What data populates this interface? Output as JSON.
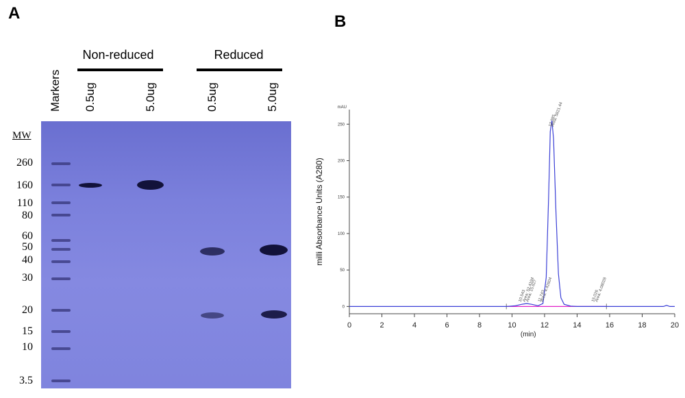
{
  "panel_a": {
    "letter": "A",
    "groups": [
      {
        "label": "Non-reduced"
      },
      {
        "label": "Reduced"
      }
    ],
    "lanes": [
      {
        "label": "Markers"
      },
      {
        "label": "0.5ug"
      },
      {
        "label": "5.0ug"
      },
      {
        "label": "0.5ug"
      },
      {
        "label": "5.0ug"
      }
    ],
    "mw_title": "MW",
    "mw_markers": [
      "260",
      "160",
      "110",
      "80",
      "60",
      "50",
      "40",
      "30",
      "20",
      "15",
      "10",
      "3.5"
    ]
  },
  "panel_b": {
    "letter": "B"
  },
  "chart_data": {
    "type": "line",
    "title": "",
    "xlabel": "(min)",
    "ylabel": "milli Absorbance Units (A280)",
    "yunit": "mAU",
    "xlim": [
      0,
      20
    ],
    "ylim": [
      -10,
      270
    ],
    "xticks": [
      "0",
      "2",
      "4",
      "6",
      "8",
      "10",
      "12",
      "14",
      "16",
      "18",
      "20"
    ],
    "yticks": [
      "0",
      "50",
      "100",
      "150",
      "200",
      "250"
    ],
    "series": [
      {
        "color": "#3a3fd6",
        "x": [
          0,
          9.7,
          10.2,
          10.6,
          10.9,
          11.2,
          11.6,
          11.9,
          12.1,
          12.25,
          12.35,
          12.45,
          12.55,
          12.7,
          12.85,
          13.0,
          13.2,
          13.6,
          14.0,
          15.0,
          18.0,
          19.3,
          19.5,
          19.7,
          20.0
        ],
        "y": [
          0,
          0,
          1,
          3,
          4,
          3,
          1,
          4,
          40,
          150,
          240,
          255,
          230,
          130,
          45,
          12,
          3,
          0.5,
          0,
          0,
          0,
          0,
          1.5,
          0,
          0
        ]
      }
    ],
    "baseline": {
      "color": "#e020c8",
      "x": [
        9.65,
        15.8
      ],
      "y": [
        0,
        0
      ]
    },
    "peak_annotations": [
      {
        "label": "10.543",
        "x": 10.54
      },
      {
        "label": "Area: 52.4194",
        "x": 10.8
      },
      {
        "label": "Area: 15.627",
        "x": 11.0
      },
      {
        "label": "11.743",
        "x": 11.74
      },
      {
        "label": "Area: 4.42604",
        "x": 11.9
      },
      {
        "label": "12.385",
        "x": 12.39
      },
      {
        "label": "Area: 5821.44",
        "x": 12.55
      },
      {
        "label": "15.026",
        "x": 15.03
      },
      {
        "label": "Area: 4.08028",
        "x": 15.25
      }
    ]
  }
}
